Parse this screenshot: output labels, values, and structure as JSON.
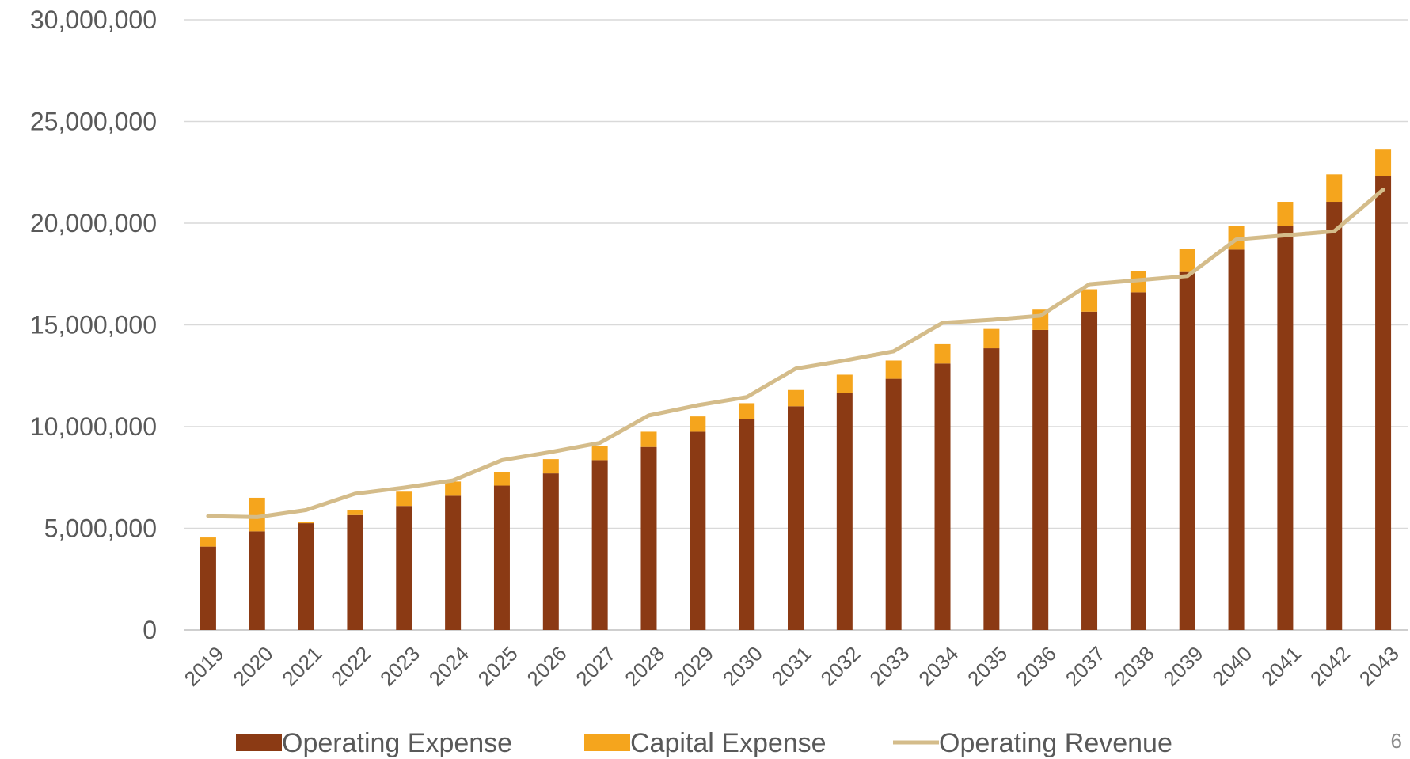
{
  "chart_data": {
    "type": "bar",
    "stacked": true,
    "categories": [
      "2019",
      "2020",
      "2021",
      "2022",
      "2023",
      "2024",
      "2025",
      "2026",
      "2027",
      "2028",
      "2029",
      "2030",
      "2031",
      "2032",
      "2033",
      "2034",
      "2035",
      "2036",
      "2037",
      "2038",
      "2039",
      "2040",
      "2041",
      "2042",
      "2043"
    ],
    "series": [
      {
        "name": "Operating Expense",
        "kind": "bar",
        "color": "#8B3A14",
        "values": [
          4100000,
          4850000,
          5250000,
          5650000,
          6100000,
          6600000,
          7100000,
          7700000,
          8350000,
          9000000,
          9750000,
          10350000,
          11000000,
          11650000,
          12350000,
          13100000,
          13850000,
          14750000,
          15650000,
          16600000,
          17600000,
          18700000,
          19850000,
          21050000,
          22300000
        ]
      },
      {
        "name": "Capital Expense",
        "kind": "bar",
        "color": "#F5A51D",
        "values": [
          450000,
          1650000,
          50000,
          250000,
          700000,
          700000,
          650000,
          700000,
          700000,
          750000,
          750000,
          800000,
          800000,
          900000,
          900000,
          950000,
          950000,
          1000000,
          1100000,
          1050000,
          1150000,
          1150000,
          1200000,
          1350000,
          1350000
        ]
      },
      {
        "name": "Operating Revenue",
        "kind": "line",
        "color": "#D4BC8A",
        "values": [
          5600000,
          5550000,
          5900000,
          6700000,
          7000000,
          7350000,
          8350000,
          8750000,
          9200000,
          10550000,
          11050000,
          11450000,
          12850000,
          13250000,
          13700000,
          15100000,
          15250000,
          15450000,
          17000000,
          17200000,
          17400000,
          19200000,
          19400000,
          19600000,
          21650000
        ]
      }
    ],
    "y_ticks": [
      "0",
      "5,000,000",
      "10,000,000",
      "15,000,000",
      "20,000,000",
      "25,000,000",
      "30,000,000"
    ],
    "ylim": [
      0,
      30000000
    ],
    "ystep": 5000000,
    "grid": true,
    "legend_position": "bottom",
    "gridline_color": "#D9D9D9",
    "axis_color": "#BFBFBF"
  },
  "page_number": "6"
}
